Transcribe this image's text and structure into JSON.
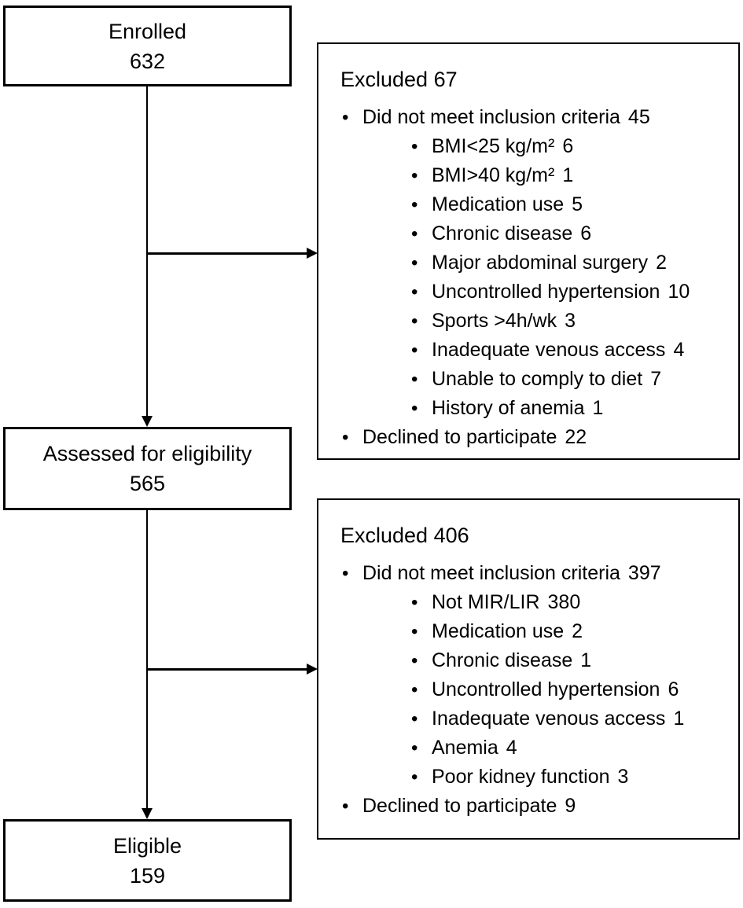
{
  "diagram": {
    "boxes": {
      "enrolled": {
        "label": "Enrolled",
        "count": "632"
      },
      "assessed": {
        "label": "Assessed for eligibility",
        "count": "565"
      },
      "eligible": {
        "label": "Eligible",
        "count": "159"
      }
    },
    "excluded": [
      {
        "title": "Excluded",
        "count": "67",
        "items": [
          {
            "level": 1,
            "label": "Did not meet inclusion criteria",
            "count": "45"
          },
          {
            "level": 2,
            "label": "BMI<25 kg/m²",
            "count": "6"
          },
          {
            "level": 2,
            "label": "BMI>40 kg/m²",
            "count": "1"
          },
          {
            "level": 2,
            "label": "Medication use",
            "count": "5"
          },
          {
            "level": 2,
            "label": "Chronic disease",
            "count": "6"
          },
          {
            "level": 2,
            "label": "Major abdominal surgery",
            "count": "2"
          },
          {
            "level": 2,
            "label": "Uncontrolled hypertension",
            "count": "10"
          },
          {
            "level": 2,
            "label": "Sports >4h/wk",
            "count": "3"
          },
          {
            "level": 2,
            "label": "Inadequate venous access",
            "count": "4"
          },
          {
            "level": 2,
            "label": "Unable to comply to diet",
            "count": "7"
          },
          {
            "level": 2,
            "label": "History of anemia",
            "count": "1"
          },
          {
            "level": 1,
            "label": "Declined to participate",
            "count": "22"
          }
        ]
      },
      {
        "title": "Excluded",
        "count": "406",
        "items": [
          {
            "level": 1,
            "label": "Did not meet inclusion criteria",
            "count": "397"
          },
          {
            "level": 2,
            "label": "Not MIR/LIR",
            "count": "380"
          },
          {
            "level": 2,
            "label": "Medication use",
            "count": "2"
          },
          {
            "level": 2,
            "label": "Chronic disease",
            "count": "1"
          },
          {
            "level": 2,
            "label": "Uncontrolled hypertension",
            "count": "6"
          },
          {
            "level": 2,
            "label": "Inadequate venous access",
            "count": "1"
          },
          {
            "level": 2,
            "label": "Anemia",
            "count": "4"
          },
          {
            "level": 2,
            "label": "Poor kidney function",
            "count": "3"
          },
          {
            "level": 1,
            "label": "Declined to participate",
            "count": "9"
          }
        ]
      }
    ],
    "colors": {
      "line": "#000000",
      "background": "#ffffff",
      "text": "#000000"
    }
  }
}
